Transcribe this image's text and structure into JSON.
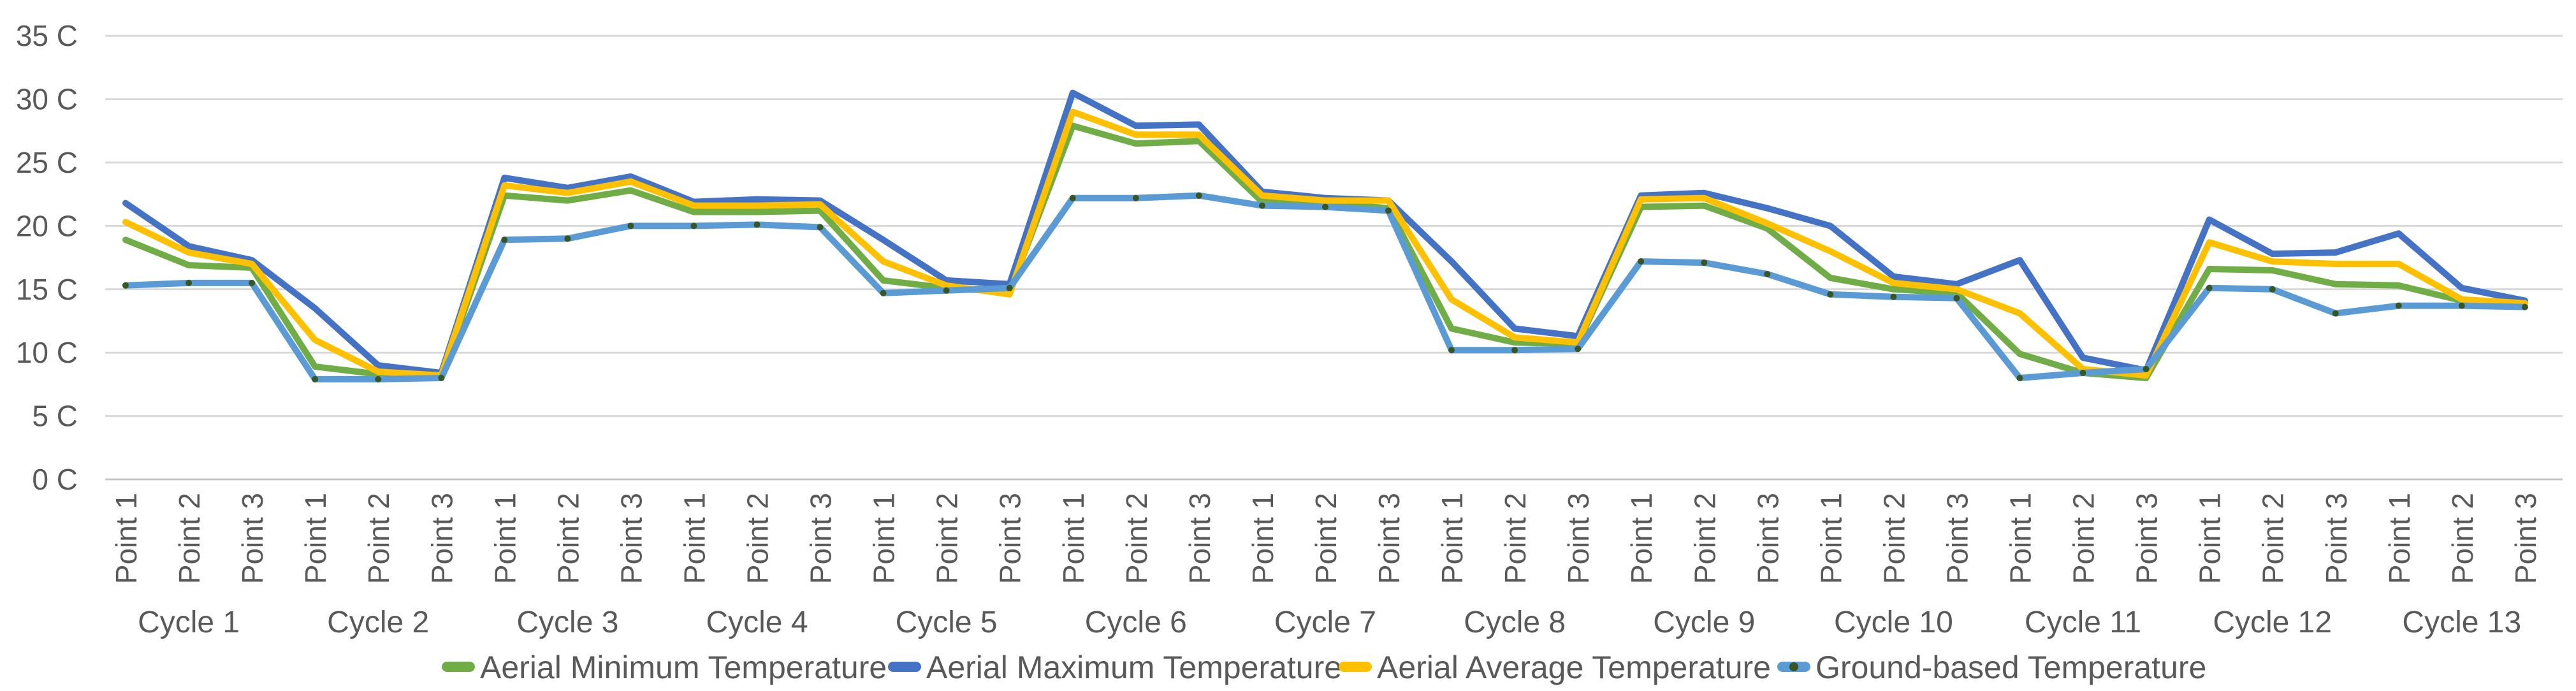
{
  "chart_data": {
    "type": "line",
    "title": "",
    "xlabel": "",
    "ylabel": "",
    "background": "#FFFFFF",
    "gridline_color": "#D9D9D9",
    "axisline_color": "#C6C6C6",
    "text_color": "#595959",
    "grid": true,
    "legend_position": "bottom",
    "y_axis": {
      "unit": "C",
      "min": 0,
      "max": 35,
      "tick_values": [
        35,
        30,
        25,
        20,
        15,
        10,
        5,
        0
      ],
      "tick_labels": [
        "35 C",
        "30 C",
        "25 C",
        "20 C",
        "15 C",
        "10 C",
        "5 C",
        "0 C"
      ]
    },
    "x_axis": {
      "points_per_cycle": [
        "Point 1",
        "Point 2",
        "Point 3"
      ],
      "cycle_labels": [
        "Cycle 1",
        "Cycle 2",
        "Cycle 3",
        "Cycle 4",
        "Cycle 5",
        "Cycle 6",
        "Cycle 7",
        "Cycle 8",
        "Cycle 9",
        "Cycle 10",
        "Cycle 11",
        "Cycle 12",
        "Cycle 13"
      ],
      "point_labels": [
        "Point 1",
        "Point 2",
        "Point 3",
        "Point 1",
        "Point 2",
        "Point 3",
        "Point 1",
        "Point 2",
        "Point 3",
        "Point 1",
        "Point 2",
        "Point 3",
        "Point 1",
        "Point 2",
        "Point 3",
        "Point 1",
        "Point 2",
        "Point 3",
        "Point 1",
        "Point 2",
        "Point 3",
        "Point 1",
        "Point 2",
        "Point 3",
        "Point 1",
        "Point 2",
        "Point 3",
        "Point 1",
        "Point 2",
        "Point 3",
        "Point 1",
        "Point 2",
        "Point 3",
        "Point 1",
        "Point 2",
        "Point 3",
        "Point 1",
        "Point 2",
        "Point 3"
      ]
    },
    "series": [
      {
        "name": "Aerial Minimum Temperature",
        "color": "#70AD47",
        "markers": false,
        "values": [
          18.9,
          16.9,
          16.7,
          8.9,
          8.3,
          8.1,
          22.4,
          22.0,
          22.8,
          21.1,
          21.1,
          21.2,
          15.7,
          15.1,
          14.8,
          27.9,
          26.5,
          26.7,
          21.9,
          21.8,
          21.4,
          11.9,
          10.8,
          10.7,
          21.5,
          21.6,
          19.8,
          15.9,
          15.0,
          14.7,
          9.9,
          8.4,
          8.0,
          16.6,
          16.5,
          15.4,
          15.3,
          14.1,
          14.0
        ]
      },
      {
        "name": "Aerial Maximum Temperature",
        "color": "#4472C4",
        "markers": false,
        "values": [
          21.8,
          18.4,
          17.3,
          13.5,
          9.0,
          8.4,
          23.8,
          23.0,
          23.9,
          21.9,
          22.1,
          22.0,
          18.9,
          15.7,
          15.4,
          30.5,
          27.9,
          28.0,
          22.7,
          22.2,
          22.0,
          17.2,
          11.9,
          11.3,
          22.4,
          22.6,
          21.4,
          20.0,
          16.0,
          15.4,
          17.3,
          9.6,
          8.6,
          20.5,
          17.8,
          17.9,
          19.4,
          15.1,
          14.1
        ]
      },
      {
        "name": "Aerial Average Temperature",
        "color": "#FFC000",
        "markers": false,
        "values": [
          20.3,
          17.9,
          17.0,
          11.0,
          8.5,
          8.2,
          23.2,
          22.6,
          23.5,
          21.6,
          21.6,
          21.7,
          17.2,
          15.3,
          14.6,
          29.0,
          27.2,
          27.2,
          22.4,
          22.0,
          22.0,
          14.2,
          11.2,
          10.8,
          22.1,
          22.2,
          20.2,
          18.0,
          15.5,
          15.0,
          13.1,
          8.7,
          8.2,
          18.7,
          17.2,
          17.0,
          17.0,
          14.2,
          13.9
        ]
      },
      {
        "name": "Ground-based Temperature",
        "color": "#5B9BD5",
        "markers": true,
        "marker_color": "#375623",
        "values": [
          15.3,
          15.5,
          15.5,
          7.9,
          7.9,
          8.0,
          18.9,
          19.0,
          20.0,
          20.0,
          20.1,
          19.9,
          14.7,
          14.9,
          15.1,
          22.2,
          22.2,
          22.4,
          21.6,
          21.5,
          21.2,
          10.2,
          10.2,
          10.3,
          17.2,
          17.1,
          16.2,
          14.6,
          14.4,
          14.3,
          8.0,
          8.4,
          8.7,
          15.1,
          15.0,
          13.1,
          13.7,
          13.7,
          13.6
        ]
      }
    ]
  }
}
